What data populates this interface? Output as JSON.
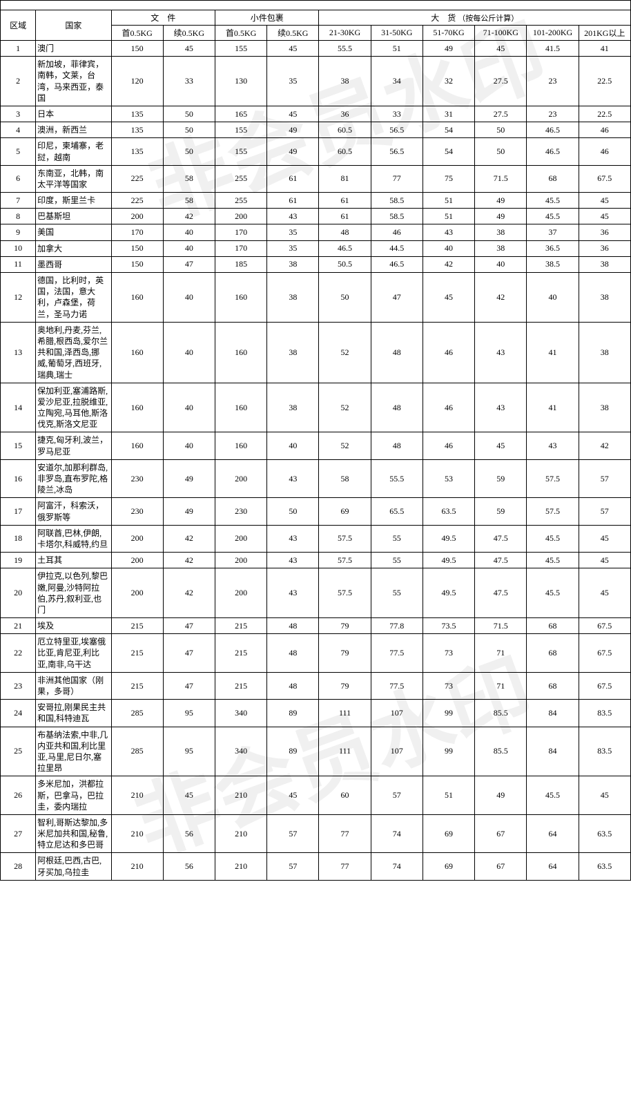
{
  "headers": {
    "zone": "区域",
    "country": "国家",
    "doc_group": "文　件",
    "parcel_group": "小件包裹",
    "freight_group": "大　货",
    "freight_note": "（按每公斤计算）",
    "doc_first": "首0.5KG",
    "doc_cont": "续0.5KG",
    "parcel_first": "首0.5KG",
    "parcel_cont": "续0.5KG",
    "w1": "21-30KG",
    "w2": "31-50KG",
    "w3": "51-70KG",
    "w4": "71-100KG",
    "w5": "101-200KG",
    "w6": "201KG以上"
  },
  "rows": [
    {
      "zone": "1",
      "country": "澳门",
      "v": [
        "150",
        "45",
        "155",
        "45",
        "55.5",
        "51",
        "49",
        "45",
        "41.5",
        "41"
      ]
    },
    {
      "zone": "2",
      "country": "新加坡，菲律宾，南韩，文莱，台湾，马来西亚，泰国",
      "v": [
        "120",
        "33",
        "130",
        "35",
        "38",
        "34",
        "32",
        "27.5",
        "23",
        "22.5"
      ]
    },
    {
      "zone": "3",
      "country": "日本",
      "v": [
        "135",
        "50",
        "165",
        "45",
        "36",
        "33",
        "31",
        "27.5",
        "23",
        "22.5"
      ]
    },
    {
      "zone": "4",
      "country": "澳洲，新西兰",
      "v": [
        "135",
        "50",
        "155",
        "49",
        "60.5",
        "56.5",
        "54",
        "50",
        "46.5",
        "46"
      ]
    },
    {
      "zone": "5",
      "country": "印尼，柬埔寨，老挝，越南",
      "v": [
        "135",
        "50",
        "155",
        "49",
        "60.5",
        "56.5",
        "54",
        "50",
        "46.5",
        "46"
      ]
    },
    {
      "zone": "6",
      "country": "东南亚，北韩，南太平洋等国家",
      "v": [
        "225",
        "58",
        "255",
        "61",
        "81",
        "77",
        "75",
        "71.5",
        "68",
        "67.5"
      ]
    },
    {
      "zone": "7",
      "country": "印度，斯里兰卡",
      "v": [
        "225",
        "58",
        "255",
        "61",
        "61",
        "58.5",
        "51",
        "49",
        "45.5",
        "45"
      ]
    },
    {
      "zone": "8",
      "country": "巴基斯坦",
      "v": [
        "200",
        "42",
        "200",
        "43",
        "61",
        "58.5",
        "51",
        "49",
        "45.5",
        "45"
      ]
    },
    {
      "zone": "9",
      "country": "美国",
      "v": [
        "170",
        "40",
        "170",
        "35",
        "48",
        "46",
        "43",
        "38",
        "37",
        "36"
      ]
    },
    {
      "zone": "10",
      "country": "加拿大",
      "v": [
        "150",
        "40",
        "170",
        "35",
        "46.5",
        "44.5",
        "40",
        "38",
        "36.5",
        "36"
      ]
    },
    {
      "zone": "11",
      "country": "墨西哥",
      "v": [
        "150",
        "47",
        "185",
        "38",
        "50.5",
        "46.5",
        "42",
        "40",
        "38.5",
        "38"
      ]
    },
    {
      "zone": "12",
      "country": "德国，比利时，英国，法国，意大利，卢森堡，荷兰，圣马力诺",
      "v": [
        "160",
        "40",
        "160",
        "38",
        "50",
        "47",
        "45",
        "42",
        "40",
        "38"
      ]
    },
    {
      "zone": "13",
      "country": "奥地利,丹麦,芬兰,希腊,根西岛,爱尔兰共和国,泽西岛,挪威,葡萄牙,西班牙,瑞典,瑞士",
      "v": [
        "160",
        "40",
        "160",
        "38",
        "52",
        "48",
        "46",
        "43",
        "41",
        "38"
      ]
    },
    {
      "zone": "14",
      "country": "保加利亚,塞浦路斯,爱沙尼亚,拉脱维亚,立陶宛,马耳他,斯洛伐克,斯洛文尼亚",
      "v": [
        "160",
        "40",
        "160",
        "38",
        "52",
        "48",
        "46",
        "43",
        "41",
        "38"
      ]
    },
    {
      "zone": "15",
      "country": "捷克,匈牙利,波兰，罗马尼亚",
      "v": [
        "160",
        "40",
        "160",
        "40",
        "52",
        "48",
        "46",
        "45",
        "43",
        "42"
      ]
    },
    {
      "zone": "16",
      "country": "安道尔,加那利群岛,非罗岛,直布罗陀,格陵兰,冰岛",
      "v": [
        "230",
        "49",
        "200",
        "43",
        "58",
        "55.5",
        "53",
        "59",
        "57.5",
        "57"
      ]
    },
    {
      "zone": "17",
      "country": "阿富汗，科索沃，俄罗斯等",
      "v": [
        "230",
        "49",
        "230",
        "50",
        "69",
        "65.5",
        "63.5",
        "59",
        "57.5",
        "57"
      ]
    },
    {
      "zone": "18",
      "country": "阿联酋,巴林,伊朗,卡塔尔,科威特,约旦",
      "v": [
        "200",
        "42",
        "200",
        "43",
        "57.5",
        "55",
        "49.5",
        "47.5",
        "45.5",
        "45"
      ]
    },
    {
      "zone": "19",
      "country": "土耳其",
      "v": [
        "200",
        "42",
        "200",
        "43",
        "57.5",
        "55",
        "49.5",
        "47.5",
        "45.5",
        "45"
      ]
    },
    {
      "zone": "20",
      "country": "伊拉克,以色列,黎巴嫩,阿曼,沙特阿拉伯,苏丹,叙利亚,也门",
      "v": [
        "200",
        "42",
        "200",
        "43",
        "57.5",
        "55",
        "49.5",
        "47.5",
        "45.5",
        "45"
      ]
    },
    {
      "zone": "21",
      "country": "埃及",
      "v": [
        "215",
        "47",
        "215",
        "48",
        "79",
        "77.8",
        "73.5",
        "71.5",
        "68",
        "67.5"
      ]
    },
    {
      "zone": "22",
      "country": "厄立特里亚,埃塞俄比亚,肯尼亚,利比亚,南非,乌干达",
      "v": [
        "215",
        "47",
        "215",
        "48",
        "79",
        "77.5",
        "73",
        "71",
        "68",
        "67.5"
      ]
    },
    {
      "zone": "23",
      "country": "非洲其他国家（刚果，多哥）",
      "v": [
        "215",
        "47",
        "215",
        "48",
        "79",
        "77.5",
        "73",
        "71",
        "68",
        "67.5"
      ]
    },
    {
      "zone": "24",
      "country": "安哥拉,刚果民主共和国,科特迪瓦",
      "v": [
        "285",
        "95",
        "340",
        "89",
        "111",
        "107",
        "99",
        "85.5",
        "84",
        "83.5"
      ]
    },
    {
      "zone": "25",
      "country": "布基纳法索,中非,几内亚共和国,利比里亚,马里,尼日尔,塞拉里昂",
      "v": [
        "285",
        "95",
        "340",
        "89",
        "111",
        "107",
        "99",
        "85.5",
        "84",
        "83.5"
      ]
    },
    {
      "zone": "26",
      "country": "多米尼加，洪都拉斯，巴拿马，巴拉圭，委内瑞拉",
      "v": [
        "210",
        "45",
        "210",
        "45",
        "60",
        "57",
        "51",
        "49",
        "45.5",
        "45"
      ]
    },
    {
      "zone": "27",
      "country": "智利,哥斯达黎加,多米尼加共和国,秘鲁,特立尼达和多巴哥",
      "v": [
        "210",
        "56",
        "210",
        "57",
        "77",
        "74",
        "69",
        "67",
        "64",
        "63.5"
      ]
    },
    {
      "zone": "28",
      "country": "阿根廷,巴西,古巴,牙买加,乌拉圭",
      "v": [
        "210",
        "56",
        "210",
        "57",
        "77",
        "74",
        "69",
        "67",
        "64",
        "63.5"
      ]
    }
  ]
}
